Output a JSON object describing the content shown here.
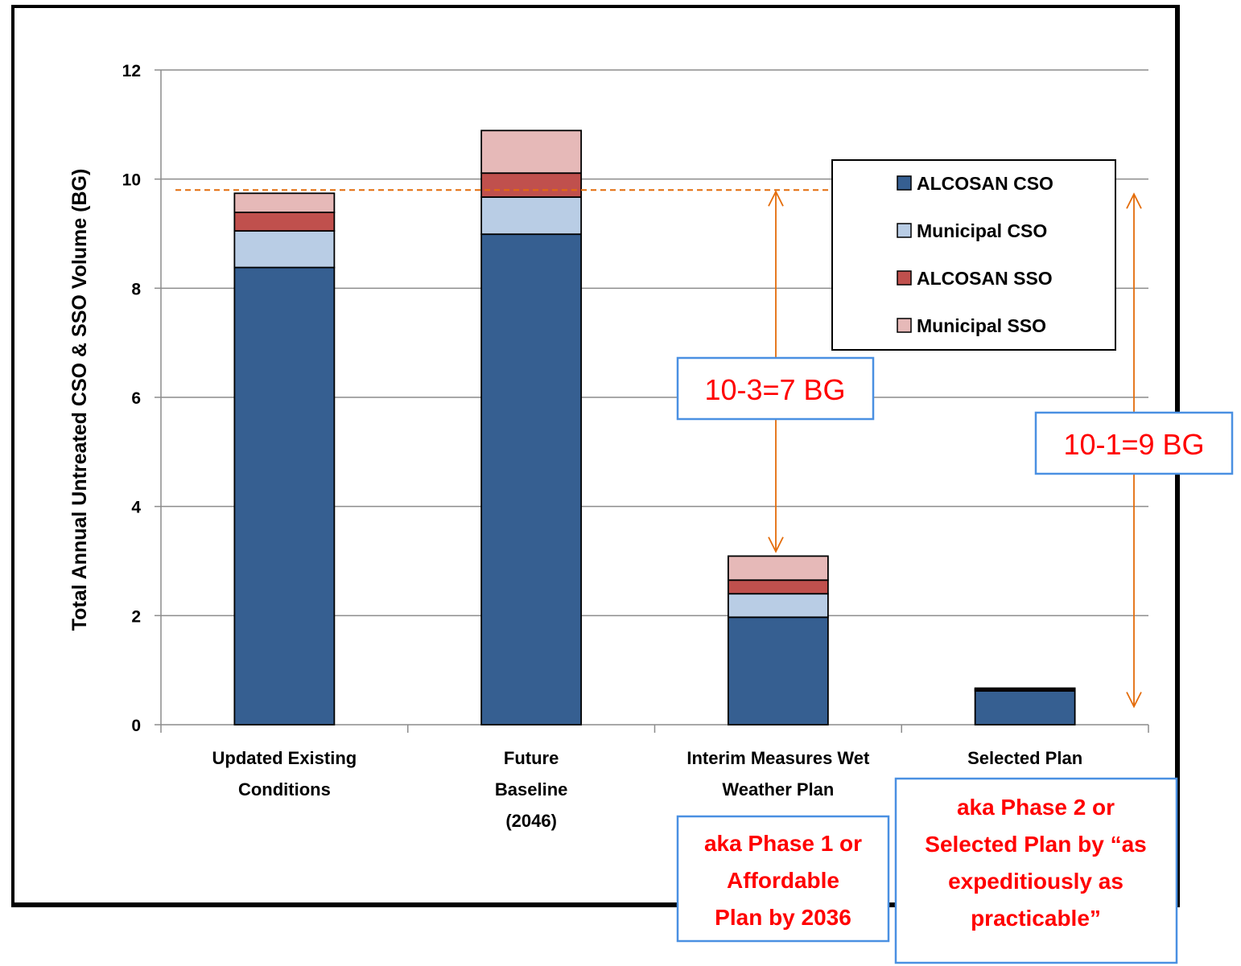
{
  "chart_data": {
    "type": "bar",
    "stacked": true,
    "categories": [
      [
        "Updated Existing",
        "Conditions"
      ],
      [
        "Future",
        "Baseline",
        "(2046)"
      ],
      [
        "Interim Measures Wet",
        "Weather Plan"
      ],
      [
        "Selected Plan"
      ]
    ],
    "series": [
      {
        "name": "ALCOSAN CSO",
        "color": "#365f91",
        "values": [
          8.38,
          8.99,
          1.97,
          0.62
        ]
      },
      {
        "name": "Municipal CSO",
        "color": "#b9cde5",
        "values": [
          0.67,
          0.68,
          0.43,
          0.0
        ]
      },
      {
        "name": "ALCOSAN SSO",
        "color": "#c0504d",
        "values": [
          0.34,
          0.44,
          0.25,
          0.03
        ]
      },
      {
        "name": "Municipal SSO",
        "color": "#e6b9b8",
        "values": [
          0.35,
          0.78,
          0.44,
          0.02
        ]
      }
    ],
    "ylabel": "Total Annual Untreated CSO & SSO Volume (BG)",
    "xlabel": "",
    "title": "",
    "ylim": [
      0,
      12
    ],
    "yticks": [
      0,
      2,
      4,
      6,
      8,
      10,
      12
    ],
    "grid": true,
    "legend_position": "top-right",
    "reference_line": {
      "y": 9.8,
      "color": "#e46c0a",
      "style": "dashed"
    },
    "annotations": [
      {
        "text": "10-3=7 BG",
        "arrow_from": 9.8,
        "arrow_to": 3.1,
        "near_category": 2
      },
      {
        "text": "10-1=9 BG",
        "arrow_from": 9.8,
        "arrow_to": 0.7,
        "near_category": 3
      }
    ],
    "notes": [
      {
        "lines": [
          "aka Phase 1 or",
          "Affordable",
          "Plan by 2036"
        ],
        "category": 2
      },
      {
        "lines": [
          "aka Phase 2 or",
          "Selected Plan by “as",
          "expeditiously as",
          "practicable”"
        ],
        "category": 3
      }
    ]
  }
}
